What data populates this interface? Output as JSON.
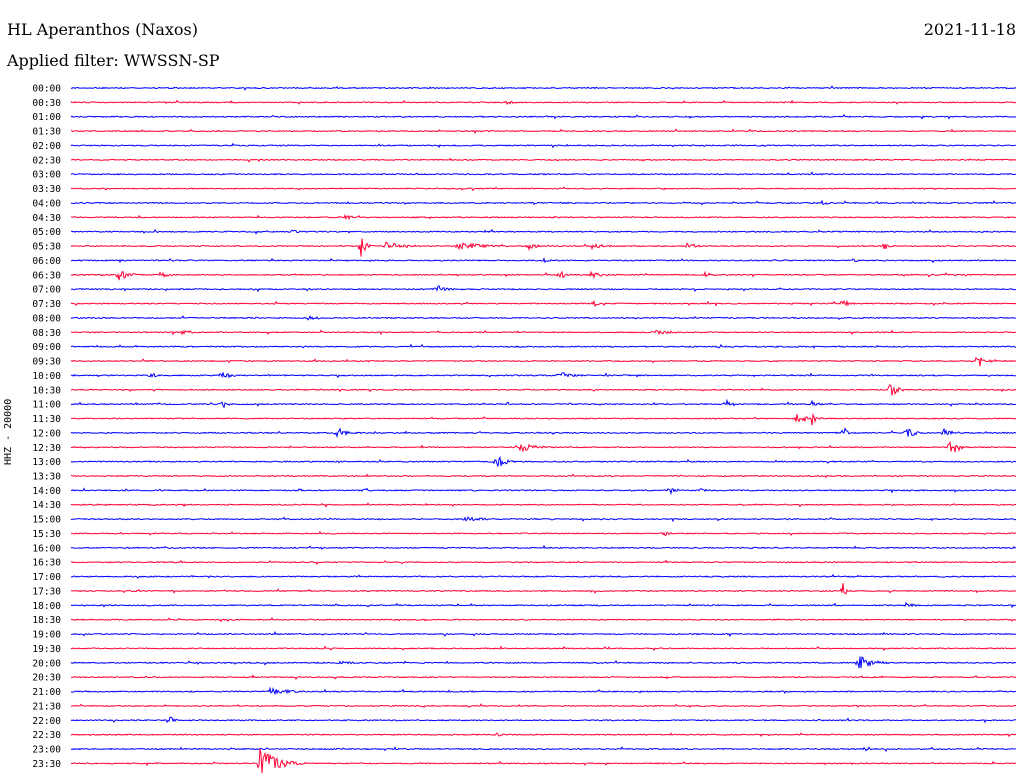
{
  "header": {
    "station": "HL Aperanthos (Naxos)",
    "filter_label": "Applied filter: WWSSN-SP",
    "date": "2021-11-18"
  },
  "chart_data": {
    "type": "line",
    "title": "HL Aperanthos (Naxos)",
    "subtitle": "Applied filter: WWSSN-SP",
    "date": "2021-11-18",
    "channel": "HHZ - 20000",
    "row_interval_minutes": 30,
    "row_labels": [
      "00:00",
      "00:30",
      "01:00",
      "01:30",
      "02:00",
      "02:30",
      "03:00",
      "03:30",
      "04:00",
      "04:30",
      "05:00",
      "05:30",
      "06:00",
      "06:30",
      "07:00",
      "07:30",
      "08:00",
      "08:30",
      "09:00",
      "09:30",
      "10:00",
      "10:30",
      "11:00",
      "11:30",
      "12:00",
      "12:30",
      "13:00",
      "13:30",
      "14:00",
      "14:30",
      "15:00",
      "15:30",
      "16:00",
      "16:30",
      "17:00",
      "17:30",
      "18:00",
      "18:30",
      "19:00",
      "19:30",
      "20:00",
      "20:30",
      "21:00",
      "21:30",
      "22:00",
      "22:30",
      "23:00",
      "23:30"
    ],
    "colors": {
      "even_rows": "#0000ff",
      "odd_rows": "#ff0033",
      "text": "#000000",
      "background": "#ffffff"
    },
    "events": [
      {
        "row": 1,
        "minute": 13.8,
        "amplitude": 2,
        "duration": 1.2
      },
      {
        "row": 8,
        "minute": 23.8,
        "amplitude": 3,
        "duration": 0.8
      },
      {
        "row": 9,
        "minute": 8.5,
        "amplitude": 3,
        "duration": 1.5
      },
      {
        "row": 10,
        "minute": 7.0,
        "amplitude": 2,
        "duration": 1.0
      },
      {
        "row": 11,
        "minute": 9.2,
        "amplitude": 12,
        "duration": 0.4
      },
      {
        "row": 11,
        "minute": 10.0,
        "amplitude": 4,
        "duration": 2.0
      },
      {
        "row": 11,
        "minute": 12.3,
        "amplitude": 4,
        "duration": 2.5
      },
      {
        "row": 11,
        "minute": 14.5,
        "amplitude": 4,
        "duration": 1.0
      },
      {
        "row": 11,
        "minute": 16.5,
        "amplitude": 3,
        "duration": 1.5
      },
      {
        "row": 11,
        "minute": 19.5,
        "amplitude": 4,
        "duration": 1.0
      },
      {
        "row": 11,
        "minute": 25.8,
        "amplitude": 5,
        "duration": 0.5
      },
      {
        "row": 12,
        "minute": 15.0,
        "amplitude": 2,
        "duration": 0.8
      },
      {
        "row": 12,
        "minute": 24.8,
        "amplitude": 2,
        "duration": 1.0
      },
      {
        "row": 13,
        "minute": 1.5,
        "amplitude": 6,
        "duration": 1.0
      },
      {
        "row": 13,
        "minute": 2.8,
        "amplitude": 4,
        "duration": 0.8
      },
      {
        "row": 13,
        "minute": 15.5,
        "amplitude": 5,
        "duration": 0.6
      },
      {
        "row": 13,
        "minute": 16.5,
        "amplitude": 3,
        "duration": 1.5
      },
      {
        "row": 13,
        "minute": 20.1,
        "amplitude": 3,
        "duration": 0.8
      },
      {
        "row": 14,
        "minute": 11.6,
        "amplitude": 5,
        "duration": 0.8
      },
      {
        "row": 15,
        "minute": 16.6,
        "amplitude": 5,
        "duration": 0.3
      },
      {
        "row": 15,
        "minute": 24.5,
        "amplitude": 5,
        "duration": 0.6
      },
      {
        "row": 16,
        "minute": 7.5,
        "amplitude": 2,
        "duration": 1.5
      },
      {
        "row": 17,
        "minute": 3.5,
        "amplitude": 2,
        "duration": 1.2
      },
      {
        "row": 17,
        "minute": 18.5,
        "amplitude": 2,
        "duration": 2.5
      },
      {
        "row": 19,
        "minute": 28.8,
        "amplitude": 8,
        "duration": 0.6
      },
      {
        "row": 20,
        "minute": 2.5,
        "amplitude": 4,
        "duration": 0.6
      },
      {
        "row": 20,
        "minute": 4.8,
        "amplitude": 4,
        "duration": 0.8
      },
      {
        "row": 20,
        "minute": 15.5,
        "amplitude": 4,
        "duration": 1.2
      },
      {
        "row": 21,
        "minute": 26.0,
        "amplitude": 9,
        "duration": 0.6
      },
      {
        "row": 22,
        "minute": 4.8,
        "amplitude": 5,
        "duration": 0.5
      },
      {
        "row": 22,
        "minute": 20.8,
        "amplitude": 5,
        "duration": 0.6
      },
      {
        "row": 22,
        "minute": 23.5,
        "amplitude": 4,
        "duration": 0.6
      },
      {
        "row": 23,
        "minute": 23.0,
        "amplitude": 5,
        "duration": 1.5
      },
      {
        "row": 23,
        "minute": 23.5,
        "amplitude": 10,
        "duration": 0.4
      },
      {
        "row": 24,
        "minute": 8.4,
        "amplitude": 7,
        "duration": 0.8
      },
      {
        "row": 24,
        "minute": 24.5,
        "amplitude": 9,
        "duration": 0.3
      },
      {
        "row": 24,
        "minute": 26.5,
        "amplitude": 9,
        "duration": 0.6
      },
      {
        "row": 24,
        "minute": 27.7,
        "amplitude": 4,
        "duration": 0.9
      },
      {
        "row": 25,
        "minute": 14.2,
        "amplitude": 5,
        "duration": 1.5
      },
      {
        "row": 25,
        "minute": 27.9,
        "amplitude": 9,
        "duration": 0.8
      },
      {
        "row": 26,
        "minute": 13.5,
        "amplitude": 8,
        "duration": 0.8
      },
      {
        "row": 28,
        "minute": 9.3,
        "amplitude": 4,
        "duration": 0.5
      },
      {
        "row": 28,
        "minute": 19.0,
        "amplitude": 4,
        "duration": 0.6
      },
      {
        "row": 28,
        "minute": 20.0,
        "amplitude": 4,
        "duration": 0.4
      },
      {
        "row": 30,
        "minute": 12.5,
        "amplitude": 3,
        "duration": 1.5
      },
      {
        "row": 31,
        "minute": 18.8,
        "amplitude": 3,
        "duration": 0.6
      },
      {
        "row": 35,
        "minute": 24.5,
        "amplitude": 9,
        "duration": 0.3
      },
      {
        "row": 36,
        "minute": 26.5,
        "amplitude": 3,
        "duration": 0.8
      },
      {
        "row": 40,
        "minute": 8.5,
        "amplitude": 3,
        "duration": 1.0
      },
      {
        "row": 40,
        "minute": 25.0,
        "amplitude": 8,
        "duration": 1.2
      },
      {
        "row": 42,
        "minute": 6.3,
        "amplitude": 4,
        "duration": 1.8
      },
      {
        "row": 44,
        "minute": 3.1,
        "amplitude": 6,
        "duration": 0.4
      },
      {
        "row": 45,
        "minute": 13.5,
        "amplitude": 2,
        "duration": 0.8
      },
      {
        "row": 47,
        "minute": 6.0,
        "amplitude": 17,
        "duration": 1.5
      }
    ]
  }
}
